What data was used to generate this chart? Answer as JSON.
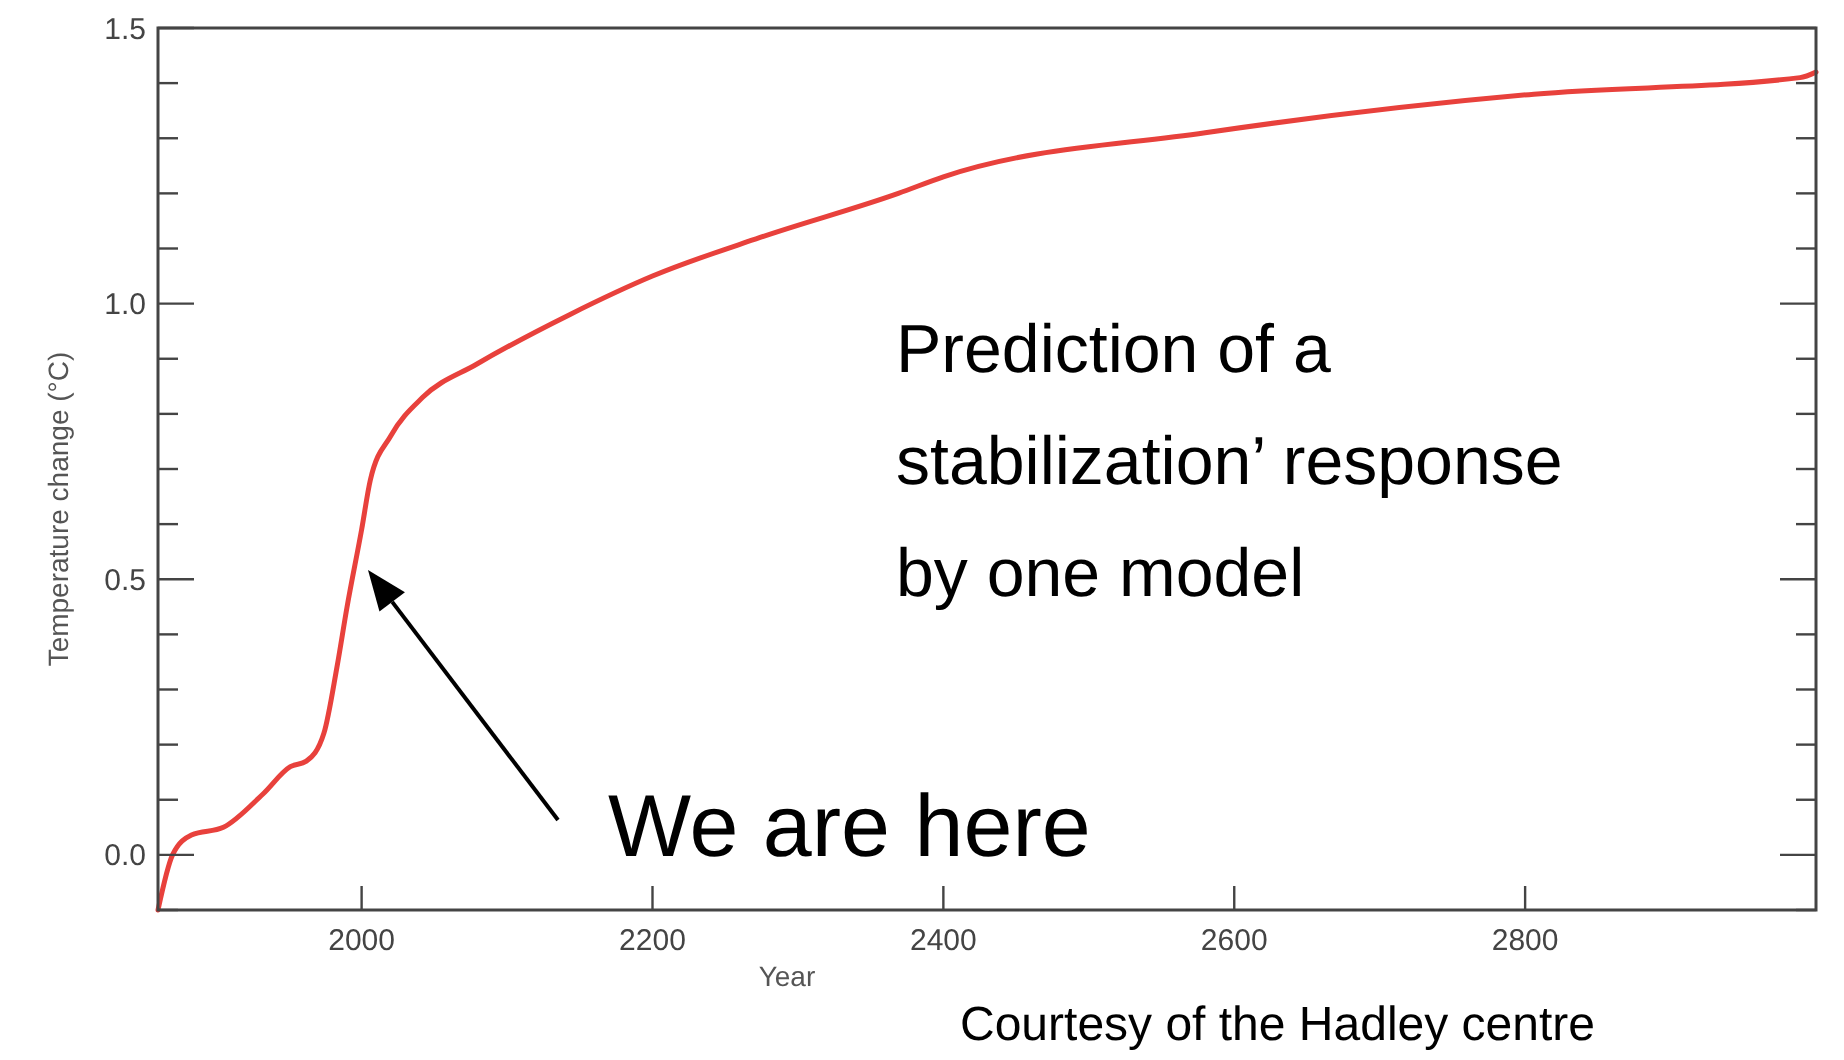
{
  "chart_data": {
    "type": "line",
    "xlabel": "Year",
    "ylabel": "Temperature change (°C)",
    "xlim": [
      1860,
      3000
    ],
    "ylim": [
      -0.1,
      1.5
    ],
    "xticks": [
      2000,
      2200,
      2400,
      2600,
      2800
    ],
    "yticks": [
      {
        "value": -0.1,
        "label": null
      },
      {
        "value": 0,
        "label": "0.0"
      },
      {
        "value": 0.1,
        "label": null
      },
      {
        "value": 0.2,
        "label": null
      },
      {
        "value": 0.3,
        "label": null
      },
      {
        "value": 0.4,
        "label": null
      },
      {
        "value": 0.5,
        "label": "0.5"
      },
      {
        "value": 0.6,
        "label": null
      },
      {
        "value": 0.7,
        "label": null
      },
      {
        "value": 0.8,
        "label": null
      },
      {
        "value": 0.9,
        "label": null
      },
      {
        "value": 1,
        "label": "1.0"
      },
      {
        "value": 1.1,
        "label": null
      },
      {
        "value": 1.2,
        "label": null
      },
      {
        "value": 1.3,
        "label": null
      },
      {
        "value": 1.4,
        "label": null
      },
      {
        "value": 1.5,
        "label": "1.5"
      }
    ],
    "series": [
      {
        "color": "#e8413c",
        "x": [
          1860,
          1870,
          1883,
          1905,
          1932,
          1951,
          1962,
          1974,
          1983,
          1990,
          2000,
          2006,
          2020,
          2042,
          2079,
          2143,
          2200,
          2274,
          2369,
          2400,
          2580,
          2806,
          2989,
          3000
        ],
        "values": [
          -0.1,
          0,
          0.036,
          0.05,
          0.11,
          0.16,
          0.17,
          0.22,
          0.34,
          0.45,
          0.59,
          0.68,
          0.76,
          0.83,
          0.89,
          0.98,
          1.05,
          1.12,
          1.2,
          1.23,
          1.31,
          1.38,
          1.41,
          1.42
        ]
      }
    ],
    "annotations": [
      "We are here",
      "Prediction of a stabilization’ response by one model",
      "Courtesy of the Hadley centre"
    ],
    "grid": false,
    "marker": "none",
    "line_style": "solid"
  }
}
